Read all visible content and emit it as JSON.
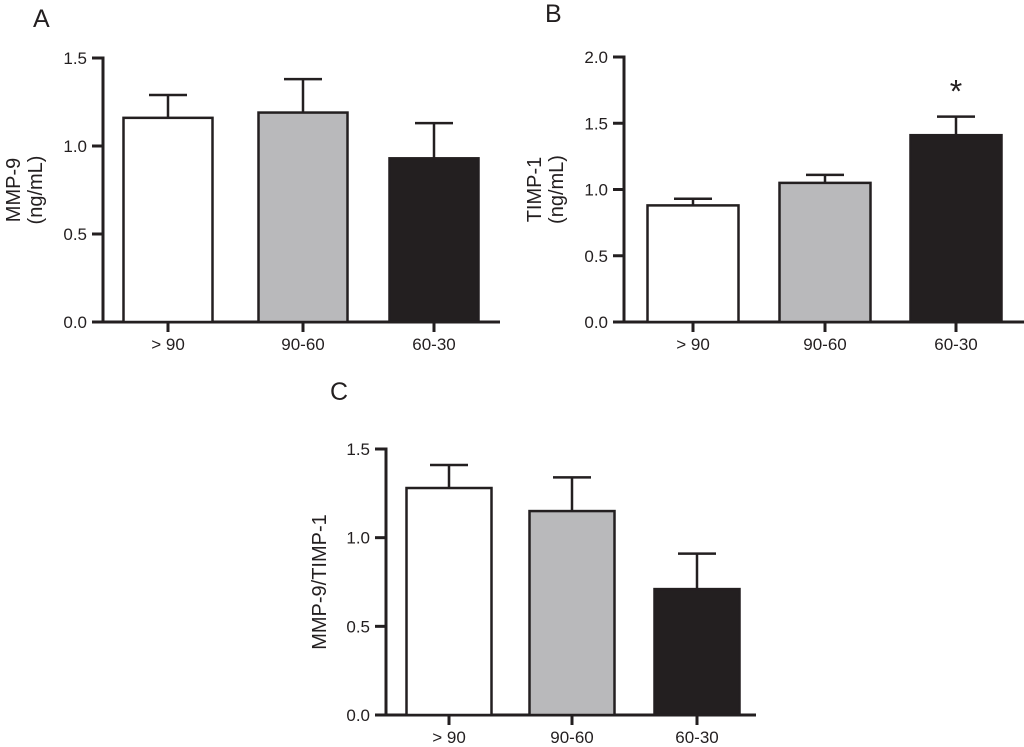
{
  "figure": {
    "background_color": "#ffffff",
    "ink_color": "#231f20",
    "panel_count": 3
  },
  "chart_data": [
    {
      "type": "bar",
      "panel_label": "A",
      "title": "",
      "xlabel": "",
      "ylabel": "MMP-9 (ng/mL)",
      "ylabel_lines": [
        "MMP-9",
        "(ng/mL)"
      ],
      "categories": [
        "> 90",
        "90-60",
        "60-30"
      ],
      "values": [
        1.16,
        1.19,
        0.93
      ],
      "errors_upper": [
        0.13,
        0.19,
        0.2
      ],
      "bar_colors": [
        "#ffffff",
        "#b9b9bb",
        "#231f20"
      ],
      "yticks": [
        0.0,
        0.5,
        1.0,
        1.5
      ],
      "ylim": [
        0,
        1.5
      ],
      "grid": false,
      "legend": null,
      "annotations": []
    },
    {
      "type": "bar",
      "panel_label": "B",
      "title": "",
      "xlabel": "",
      "ylabel": "TIMP-1 (ng/mL)",
      "ylabel_lines": [
        "TIMP-1",
        "(ng/mL)"
      ],
      "categories": [
        "> 90",
        "90-60",
        "60-30"
      ],
      "values": [
        0.88,
        1.05,
        1.41
      ],
      "errors_upper": [
        0.05,
        0.06,
        0.14
      ],
      "bar_colors": [
        "#ffffff",
        "#b9b9bb",
        "#231f20"
      ],
      "yticks": [
        0.0,
        0.5,
        1.0,
        1.5,
        2.0
      ],
      "ylim": [
        0,
        2.0
      ],
      "grid": false,
      "legend": null,
      "annotations": [
        {
          "text": "*",
          "category_index": 2
        }
      ]
    },
    {
      "type": "bar",
      "panel_label": "C",
      "title": "",
      "xlabel": "",
      "ylabel": "MMP-9/TIMP-1",
      "ylabel_lines": [
        "MMP-9/TIMP-1"
      ],
      "categories": [
        "> 90",
        "90-60",
        "60-30"
      ],
      "values": [
        1.28,
        1.15,
        0.71
      ],
      "errors_upper": [
        0.13,
        0.19,
        0.2
      ],
      "bar_colors": [
        "#ffffff",
        "#b9b9bb",
        "#231f20"
      ],
      "yticks": [
        0.0,
        0.5,
        1.0,
        1.5
      ],
      "ylim": [
        0,
        1.5
      ],
      "grid": false,
      "legend": null,
      "annotations": []
    }
  ]
}
